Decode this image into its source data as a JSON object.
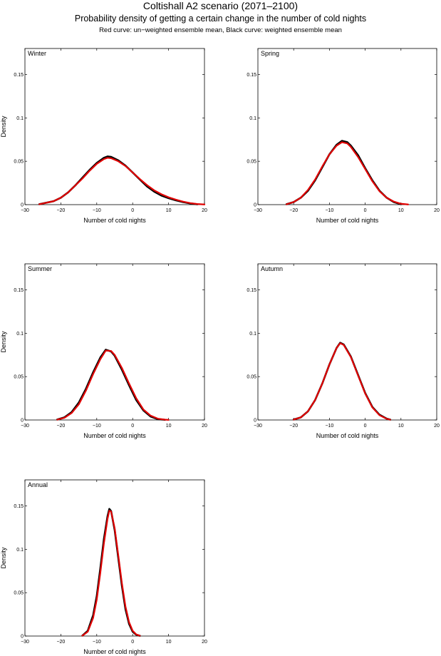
{
  "header": {
    "title": "Coltishall A2 scenario (2071–2100)",
    "subtitle": "Probability density of getting a certain change in the number of cold nights",
    "note": "Red curve: un−weighted ensemble mean, Black curve: weighted ensemble mean"
  },
  "colors": {
    "unweighted": "#e00000",
    "weighted": "#000000"
  },
  "chart_data": [
    {
      "type": "line",
      "panel_label": "Winter",
      "xlabel": "Number of cold nights",
      "ylabel": "Density",
      "xlim": [
        -30,
        20
      ],
      "ylim": [
        0,
        0.18
      ],
      "xticks": [
        -30,
        -20,
        -10,
        0,
        10,
        20
      ],
      "yticks": [
        0,
        0.05,
        0.1,
        0.15
      ],
      "xtick_labels": [
        "−30",
        "−20",
        "−10",
        "0",
        "10",
        "20"
      ],
      "ytick_labels": [
        "0",
        "0.05",
        "0.1",
        "0.15"
      ],
      "series": [
        {
          "color": "#000000",
          "x": [
            -26,
            -22,
            -20,
            -18,
            -16,
            -14,
            -12,
            -10,
            -8,
            -7,
            -6,
            -4,
            -2,
            0,
            2,
            4,
            6,
            8,
            10,
            12,
            14,
            16,
            18
          ],
          "y": [
            0.0005,
            0.004,
            0.008,
            0.014,
            0.022,
            0.031,
            0.04,
            0.048,
            0.054,
            0.0555,
            0.055,
            0.051,
            0.045,
            0.037,
            0.029,
            0.021,
            0.015,
            0.0105,
            0.0075,
            0.005,
            0.003,
            0.0015,
            0.0004
          ]
        },
        {
          "color": "#e00000",
          "x": [
            -26,
            -22,
            -20,
            -18,
            -16,
            -14,
            -12,
            -10,
            -8,
            -7,
            -6,
            -4,
            -2,
            0,
            2,
            4,
            6,
            8,
            10,
            12,
            14,
            16,
            18,
            20
          ],
          "y": [
            0.0005,
            0.004,
            0.008,
            0.014,
            0.022,
            0.03,
            0.039,
            0.047,
            0.0525,
            0.054,
            0.0535,
            0.05,
            0.0445,
            0.037,
            0.0295,
            0.0225,
            0.0165,
            0.012,
            0.0085,
            0.0058,
            0.0035,
            0.0018,
            0.0007,
            0.0002
          ]
        }
      ]
    },
    {
      "type": "line",
      "panel_label": "Spring",
      "xlabel": "Number of cold nights",
      "ylabel": "",
      "xlim": [
        -30,
        20
      ],
      "ylim": [
        0,
        0.18
      ],
      "xticks": [
        -30,
        -20,
        -10,
        0,
        10,
        20
      ],
      "yticks": [
        0,
        0.05,
        0.1,
        0.15
      ],
      "xtick_labels": [
        "−30",
        "−20",
        "−10",
        "0",
        "10",
        "20"
      ],
      "ytick_labels": [
        "0",
        "0.05",
        "0.1",
        "0.15"
      ],
      "series": [
        {
          "color": "#000000",
          "x": [
            -22,
            -20,
            -18,
            -16,
            -14,
            -12,
            -10,
            -8,
            -6.5,
            -5,
            -4,
            -2,
            0,
            2,
            4,
            6,
            8,
            10
          ],
          "y": [
            0.0005,
            0.003,
            0.008,
            0.016,
            0.028,
            0.043,
            0.058,
            0.069,
            0.0735,
            0.072,
            0.068,
            0.057,
            0.042,
            0.028,
            0.016,
            0.008,
            0.003,
            0.0005
          ]
        },
        {
          "color": "#e00000",
          "x": [
            -22,
            -20,
            -18,
            -16,
            -14,
            -12,
            -10,
            -8,
            -6.5,
            -5,
            -4,
            -2,
            0,
            2,
            4,
            6,
            8,
            10,
            12
          ],
          "y": [
            0.0004,
            0.003,
            0.008,
            0.017,
            0.029,
            0.044,
            0.058,
            0.068,
            0.072,
            0.0705,
            0.0665,
            0.055,
            0.041,
            0.027,
            0.0155,
            0.008,
            0.0035,
            0.001,
            0.0002
          ]
        }
      ]
    },
    {
      "type": "line",
      "panel_label": "Summer",
      "xlabel": "Number of cold nights",
      "ylabel": "Density",
      "xlim": [
        -30,
        20
      ],
      "ylim": [
        0,
        0.18
      ],
      "xticks": [
        -30,
        -20,
        -10,
        0,
        10,
        20
      ],
      "yticks": [
        0,
        0.05,
        0.1,
        0.15
      ],
      "xtick_labels": [
        "−30",
        "−20",
        "−10",
        "0",
        "10",
        "20"
      ],
      "ytick_labels": [
        "0",
        "0.05",
        "0.1",
        "0.15"
      ],
      "series": [
        {
          "color": "#000000",
          "x": [
            -21,
            -19,
            -17,
            -15,
            -13,
            -11,
            -9,
            -7.5,
            -6,
            -5,
            -3,
            -1,
            1,
            3,
            5,
            7,
            9
          ],
          "y": [
            0.0005,
            0.003,
            0.009,
            0.02,
            0.036,
            0.055,
            0.072,
            0.081,
            0.079,
            0.074,
            0.058,
            0.04,
            0.023,
            0.011,
            0.004,
            0.001,
            0.0002
          ]
        },
        {
          "color": "#e00000",
          "x": [
            -21,
            -19,
            -17,
            -15,
            -13,
            -11,
            -9,
            -7.5,
            -6,
            -5,
            -3,
            -1,
            1,
            3,
            5,
            7,
            9,
            10
          ],
          "y": [
            0.0004,
            0.0025,
            0.008,
            0.018,
            0.034,
            0.053,
            0.07,
            0.08,
            0.0795,
            0.075,
            0.06,
            0.042,
            0.025,
            0.012,
            0.005,
            0.0015,
            0.0004,
            0.0001
          ]
        }
      ]
    },
    {
      "type": "line",
      "panel_label": "Autumn",
      "xlabel": "Number of cold nights",
      "ylabel": "",
      "xlim": [
        -30,
        20
      ],
      "ylim": [
        0,
        0.18
      ],
      "xticks": [
        -30,
        -20,
        -10,
        0,
        10,
        20
      ],
      "yticks": [
        0,
        0.05,
        0.1,
        0.15
      ],
      "xtick_labels": [
        "−30",
        "−20",
        "−10",
        "0",
        "10",
        "20"
      ],
      "ytick_labels": [
        "0",
        "0.05",
        "0.1",
        "0.15"
      ],
      "series": [
        {
          "color": "#000000",
          "x": [
            -20,
            -18,
            -16,
            -14,
            -12,
            -10,
            -8,
            -7,
            -6,
            -4,
            -2,
            0,
            2,
            4,
            6,
            7
          ],
          "y": [
            0.0005,
            0.003,
            0.01,
            0.023,
            0.042,
            0.064,
            0.083,
            0.089,
            0.087,
            0.073,
            0.052,
            0.031,
            0.015,
            0.006,
            0.0015,
            0.0004
          ]
        },
        {
          "color": "#e00000",
          "x": [
            -20,
            -18,
            -16,
            -14,
            -12,
            -10,
            -8,
            -7,
            -6,
            -4,
            -2,
            0,
            2,
            4,
            6,
            7
          ],
          "y": [
            0.0005,
            0.003,
            0.01,
            0.023,
            0.042,
            0.064,
            0.083,
            0.0885,
            0.0865,
            0.0725,
            0.0515,
            0.0305,
            0.0145,
            0.0055,
            0.0014,
            0.0004
          ]
        }
      ]
    },
    {
      "type": "line",
      "panel_label": "Annual",
      "xlabel": "Number of cold nights",
      "ylabel": "Density",
      "xlim": [
        -30,
        20
      ],
      "ylim": [
        0,
        0.18
      ],
      "xticks": [
        -30,
        -20,
        -10,
        0,
        10,
        20
      ],
      "yticks": [
        0,
        0.05,
        0.1,
        0.15
      ],
      "xtick_labels": [
        "−30",
        "−20",
        "−10",
        "0",
        "10",
        "20"
      ],
      "ytick_labels": [
        "0",
        "0.05",
        "0.1",
        "0.15"
      ],
      "series": [
        {
          "color": "#000000",
          "x": [
            -14,
            -12.5,
            -11,
            -10,
            -9,
            -8,
            -7,
            -6.5,
            -6,
            -5,
            -4,
            -3,
            -2,
            -1,
            0,
            1,
            2
          ],
          "y": [
            0.0005,
            0.006,
            0.024,
            0.046,
            0.078,
            0.112,
            0.138,
            0.1465,
            0.144,
            0.122,
            0.09,
            0.058,
            0.031,
            0.014,
            0.005,
            0.0015,
            0.0003
          ]
        },
        {
          "color": "#e00000",
          "x": [
            -14,
            -12.5,
            -11,
            -10,
            -9,
            -8,
            -7,
            -6.5,
            -6,
            -5,
            -4,
            -3,
            -2,
            -1,
            0,
            1,
            2
          ],
          "y": [
            0.0004,
            0.005,
            0.021,
            0.042,
            0.073,
            0.107,
            0.135,
            0.1445,
            0.1435,
            0.124,
            0.093,
            0.061,
            0.034,
            0.016,
            0.006,
            0.0018,
            0.0004
          ]
        }
      ]
    }
  ]
}
